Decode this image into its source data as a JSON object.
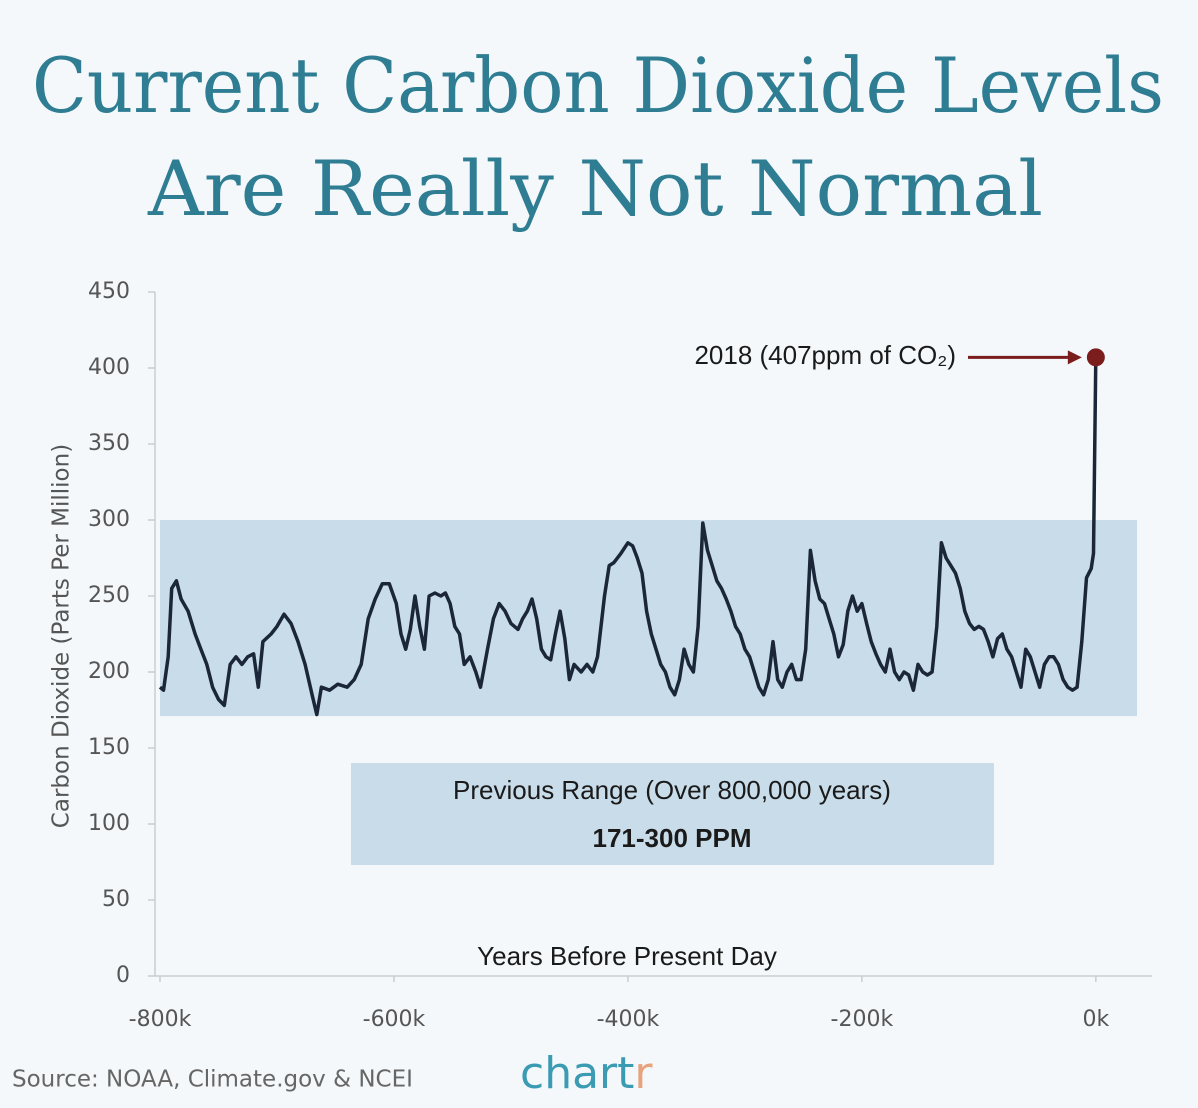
{
  "chart_data": {
    "type": "line",
    "title_lines": [
      "Current Carbon Dioxide Levels",
      "Are Really Not Normal"
    ],
    "xlabel": "Years Before Present Day",
    "ylabel": "Carbon Dioxide (Parts Per Million)",
    "source": "Source: NOAA, Climate.gov & NCEI",
    "logo_main": "chart",
    "logo_accent": "r",
    "xlim": [
      -800000,
      48000
    ],
    "xticks": [
      {
        "value": -800000,
        "label": "-800k"
      },
      {
        "value": -600000,
        "label": "-600k"
      },
      {
        "value": -400000,
        "label": "-400k"
      },
      {
        "value": -200000,
        "label": "-200k"
      },
      {
        "value": 0,
        "label": "0k"
      }
    ],
    "ylim": [
      0,
      450
    ],
    "yticks": [
      0,
      50,
      100,
      150,
      200,
      250,
      300,
      350,
      400,
      450
    ],
    "range_band": {
      "low": 171,
      "high": 300,
      "color": "#c9dcea",
      "label_lines": [
        "Previous Range (Over 800,000 years)",
        "171-300 PPM"
      ]
    },
    "highlight": {
      "x": 0,
      "value": 407,
      "label": "2018 (407ppm of CO₂)",
      "color": "#7b1d1d"
    },
    "x": [
      -800000,
      -797000,
      -793000,
      -790000,
      -786000,
      -782000,
      -776000,
      -770000,
      -765000,
      -760000,
      -755000,
      -750000,
      -745000,
      -740000,
      -735000,
      -730000,
      -725000,
      -720000,
      -716000,
      -712000,
      -705000,
      -700000,
      -694000,
      -688000,
      -682000,
      -676000,
      -670000,
      -666000,
      -662000,
      -655000,
      -648000,
      -640000,
      -634000,
      -628000,
      -622000,
      -616000,
      -610000,
      -604000,
      -598000,
      -594000,
      -590000,
      -586000,
      -582000,
      -578000,
      -574000,
      -570000,
      -565000,
      -560000,
      -556000,
      -552000,
      -548000,
      -544000,
      -540000,
      -535000,
      -530000,
      -526000,
      -520000,
      -515000,
      -510000,
      -505000,
      -500000,
      -494000,
      -490000,
      -486000,
      -482000,
      -478000,
      -474000,
      -470000,
      -466000,
      -462000,
      -458000,
      -454000,
      -450000,
      -446000,
      -440000,
      -435000,
      -430000,
      -426000,
      -420000,
      -416000,
      -412000,
      -406000,
      -400000,
      -396000,
      -392000,
      -388000,
      -384000,
      -380000,
      -376000,
      -372000,
      -368000,
      -364000,
      -360000,
      -356000,
      -352000,
      -348000,
      -344000,
      -340000,
      -336000,
      -332000,
      -328000,
      -324000,
      -320000,
      -316000,
      -312000,
      -308000,
      -304000,
      -300000,
      -296000,
      -292000,
      -288000,
      -284000,
      -280000,
      -276000,
      -272000,
      -268000,
      -264000,
      -260000,
      -256000,
      -252000,
      -248000,
      -244000,
      -240000,
      -236000,
      -232000,
      -228000,
      -224000,
      -220000,
      -216000,
      -212000,
      -208000,
      -204000,
      -200000,
      -196000,
      -192000,
      -188000,
      -184000,
      -180000,
      -176000,
      -172000,
      -168000,
      -164000,
      -160000,
      -156000,
      -152000,
      -148000,
      -144000,
      -140000,
      -136000,
      -132000,
      -128000,
      -124000,
      -120000,
      -116000,
      -112000,
      -108000,
      -104000,
      -100000,
      -96000,
      -92000,
      -88000,
      -84000,
      -80000,
      -76000,
      -72000,
      -68000,
      -64000,
      -60000,
      -56000,
      -52000,
      -48000,
      -44000,
      -40000,
      -36000,
      -32000,
      -28000,
      -24000,
      -20000,
      -16000,
      -12000,
      -8000,
      -4000,
      -2000,
      0
    ],
    "series": [
      {
        "name": "CO2",
        "color": "#1b2738",
        "values": [
          190,
          188,
          210,
          255,
          260,
          248,
          240,
          225,
          215,
          205,
          190,
          182,
          178,
          205,
          210,
          205,
          210,
          212,
          190,
          220,
          225,
          230,
          238,
          232,
          220,
          205,
          185,
          172,
          190,
          188,
          192,
          190,
          195,
          205,
          235,
          248,
          258,
          258,
          245,
          225,
          215,
          228,
          250,
          230,
          215,
          250,
          252,
          250,
          252,
          245,
          230,
          225,
          205,
          210,
          200,
          190,
          215,
          235,
          245,
          240,
          232,
          228,
          235,
          240,
          248,
          235,
          215,
          210,
          208,
          225,
          240,
          222,
          195,
          205,
          200,
          205,
          200,
          210,
          250,
          270,
          272,
          278,
          285,
          283,
          275,
          265,
          240,
          225,
          215,
          205,
          200,
          190,
          185,
          195,
          215,
          205,
          200,
          230,
          298,
          280,
          270,
          260,
          255,
          248,
          240,
          230,
          225,
          215,
          210,
          200,
          190,
          185,
          195,
          220,
          195,
          190,
          200,
          205,
          195,
          195,
          215,
          280,
          260,
          248,
          245,
          235,
          225,
          210,
          218,
          240,
          250,
          240,
          245,
          232,
          220,
          212,
          205,
          200,
          215,
          200,
          195,
          200,
          198,
          188,
          205,
          200,
          198,
          200,
          230,
          285,
          275,
          270,
          265,
          255,
          240,
          232,
          228,
          230,
          228,
          220,
          210,
          222,
          225,
          215,
          210,
          200,
          190,
          215,
          210,
          200,
          190,
          205,
          210,
          210,
          205,
          195,
          190,
          188,
          190,
          220,
          262,
          268,
          278,
          407
        ]
      }
    ]
  }
}
